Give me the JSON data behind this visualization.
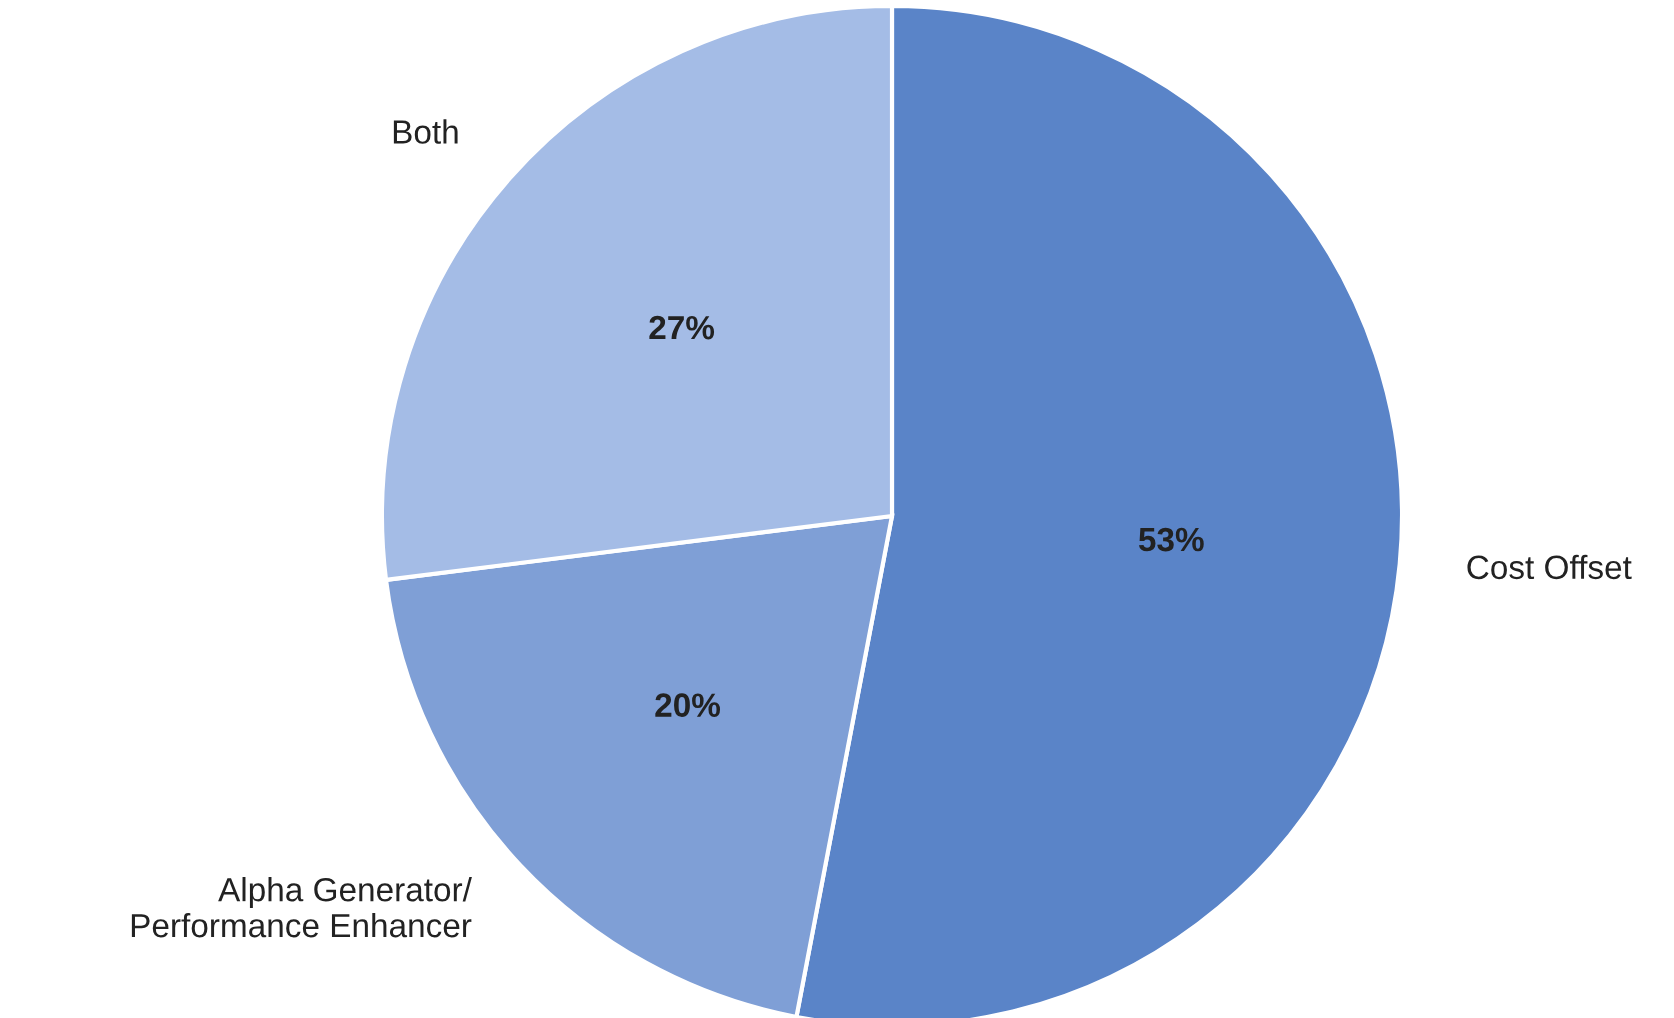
{
  "chart_data": {
    "type": "pie",
    "categories": [
      "Cost Offset",
      "Alpha Generator/\nPerformance Enhancer",
      "Both"
    ],
    "values": [
      53,
      20,
      27
    ],
    "colors": [
      "#5a84c8",
      "#7f9fd6",
      "#a4bce6"
    ],
    "value_labels": [
      "53%",
      "20%",
      "27%"
    ]
  }
}
